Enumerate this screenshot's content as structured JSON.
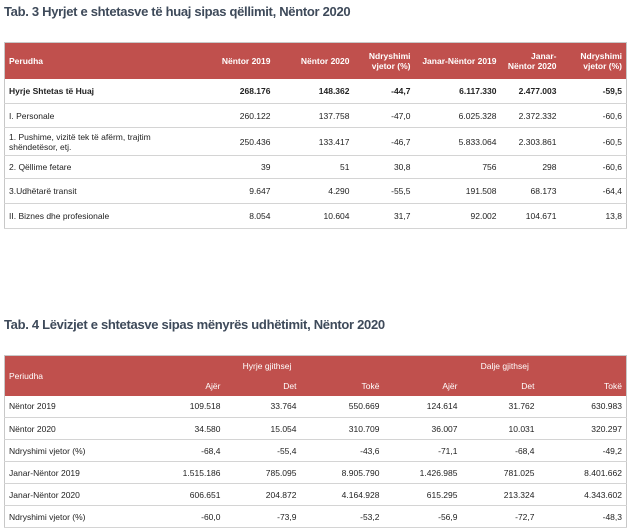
{
  "table3": {
    "title": "Tab. 3 Hyrjet e shtetasve të huaj sipas qëllimit, Nëntor 2020",
    "header": [
      "Perudha",
      "Nëntor 2019",
      "Nëntor 2020",
      "Ndryshimi vjetor (%)",
      "Janar-Nëntor 2019",
      "Janar-Nëntor 2020",
      "Ndryshimi vjetor (%)"
    ],
    "rows": [
      [
        "Hyrje Shtetas të Huaj",
        "268.176",
        "148.362",
        "-44,7",
        "6.117.330",
        "2.477.003",
        "-59,5"
      ],
      [
        "I. Personale",
        "260.122",
        "137.758",
        "-47,0",
        "6.025.328",
        "2.372.332",
        "-60,6"
      ],
      [
        "1. Pushime, vizitë tek të afërm, trajtim shëndetësor, etj.",
        "250.436",
        "133.417",
        "-46,7",
        "5.833.064",
        "2.303.861",
        "-60,5"
      ],
      [
        "2. Qëllime fetare",
        "39",
        "51",
        "30,8",
        "756",
        "298",
        "-60,6"
      ],
      [
        "3.Udhëtarë transit",
        "9.647",
        "4.290",
        "-55,5",
        "191.508",
        "68.173",
        "-64,4"
      ],
      [
        "II. Biznes dhe profesionale",
        "8.054",
        "10.604",
        "31,7",
        "92.002",
        "104.671",
        "13,8"
      ]
    ]
  },
  "table4": {
    "title": "Tab. 4 Lëvizjet e shtetasve sipas mënyrës udhëtimit, Nëntor 2020",
    "header_groups": [
      "Periudha",
      "Hyrje gjithsej",
      "Dalje gjithsej"
    ],
    "header_sub": [
      "Ajër",
      "Det",
      "Tokë",
      "Ajër",
      "Det",
      "Tokë"
    ],
    "rows": [
      [
        "Nëntor 2019",
        "109.518",
        "33.764",
        "550.669",
        "124.614",
        "31.762",
        "630.983"
      ],
      [
        "Nëntor 2020",
        "34.580",
        "15.054",
        "310.709",
        "36.007",
        "10.031",
        "320.297"
      ],
      [
        "Ndryshimi vjetor (%)",
        "-68,4",
        "-55,4",
        "-43,6",
        "-71,1",
        "-68,4",
        "-49,2"
      ],
      [
        "Janar-Nëntor 2019",
        "1.515.186",
        "785.095",
        "8.905.790",
        "1.426.985",
        "781.025",
        "8.401.662"
      ],
      [
        "Janar-Nëntor 2020",
        "606.651",
        "204.872",
        "4.164.928",
        "615.295",
        "213.324",
        "4.343.602"
      ],
      [
        "Ndryshimi vjetor (%)",
        "-60,0",
        "-73,9",
        "-53,2",
        "-56,9",
        "-72,7",
        "-48,3"
      ]
    ]
  }
}
